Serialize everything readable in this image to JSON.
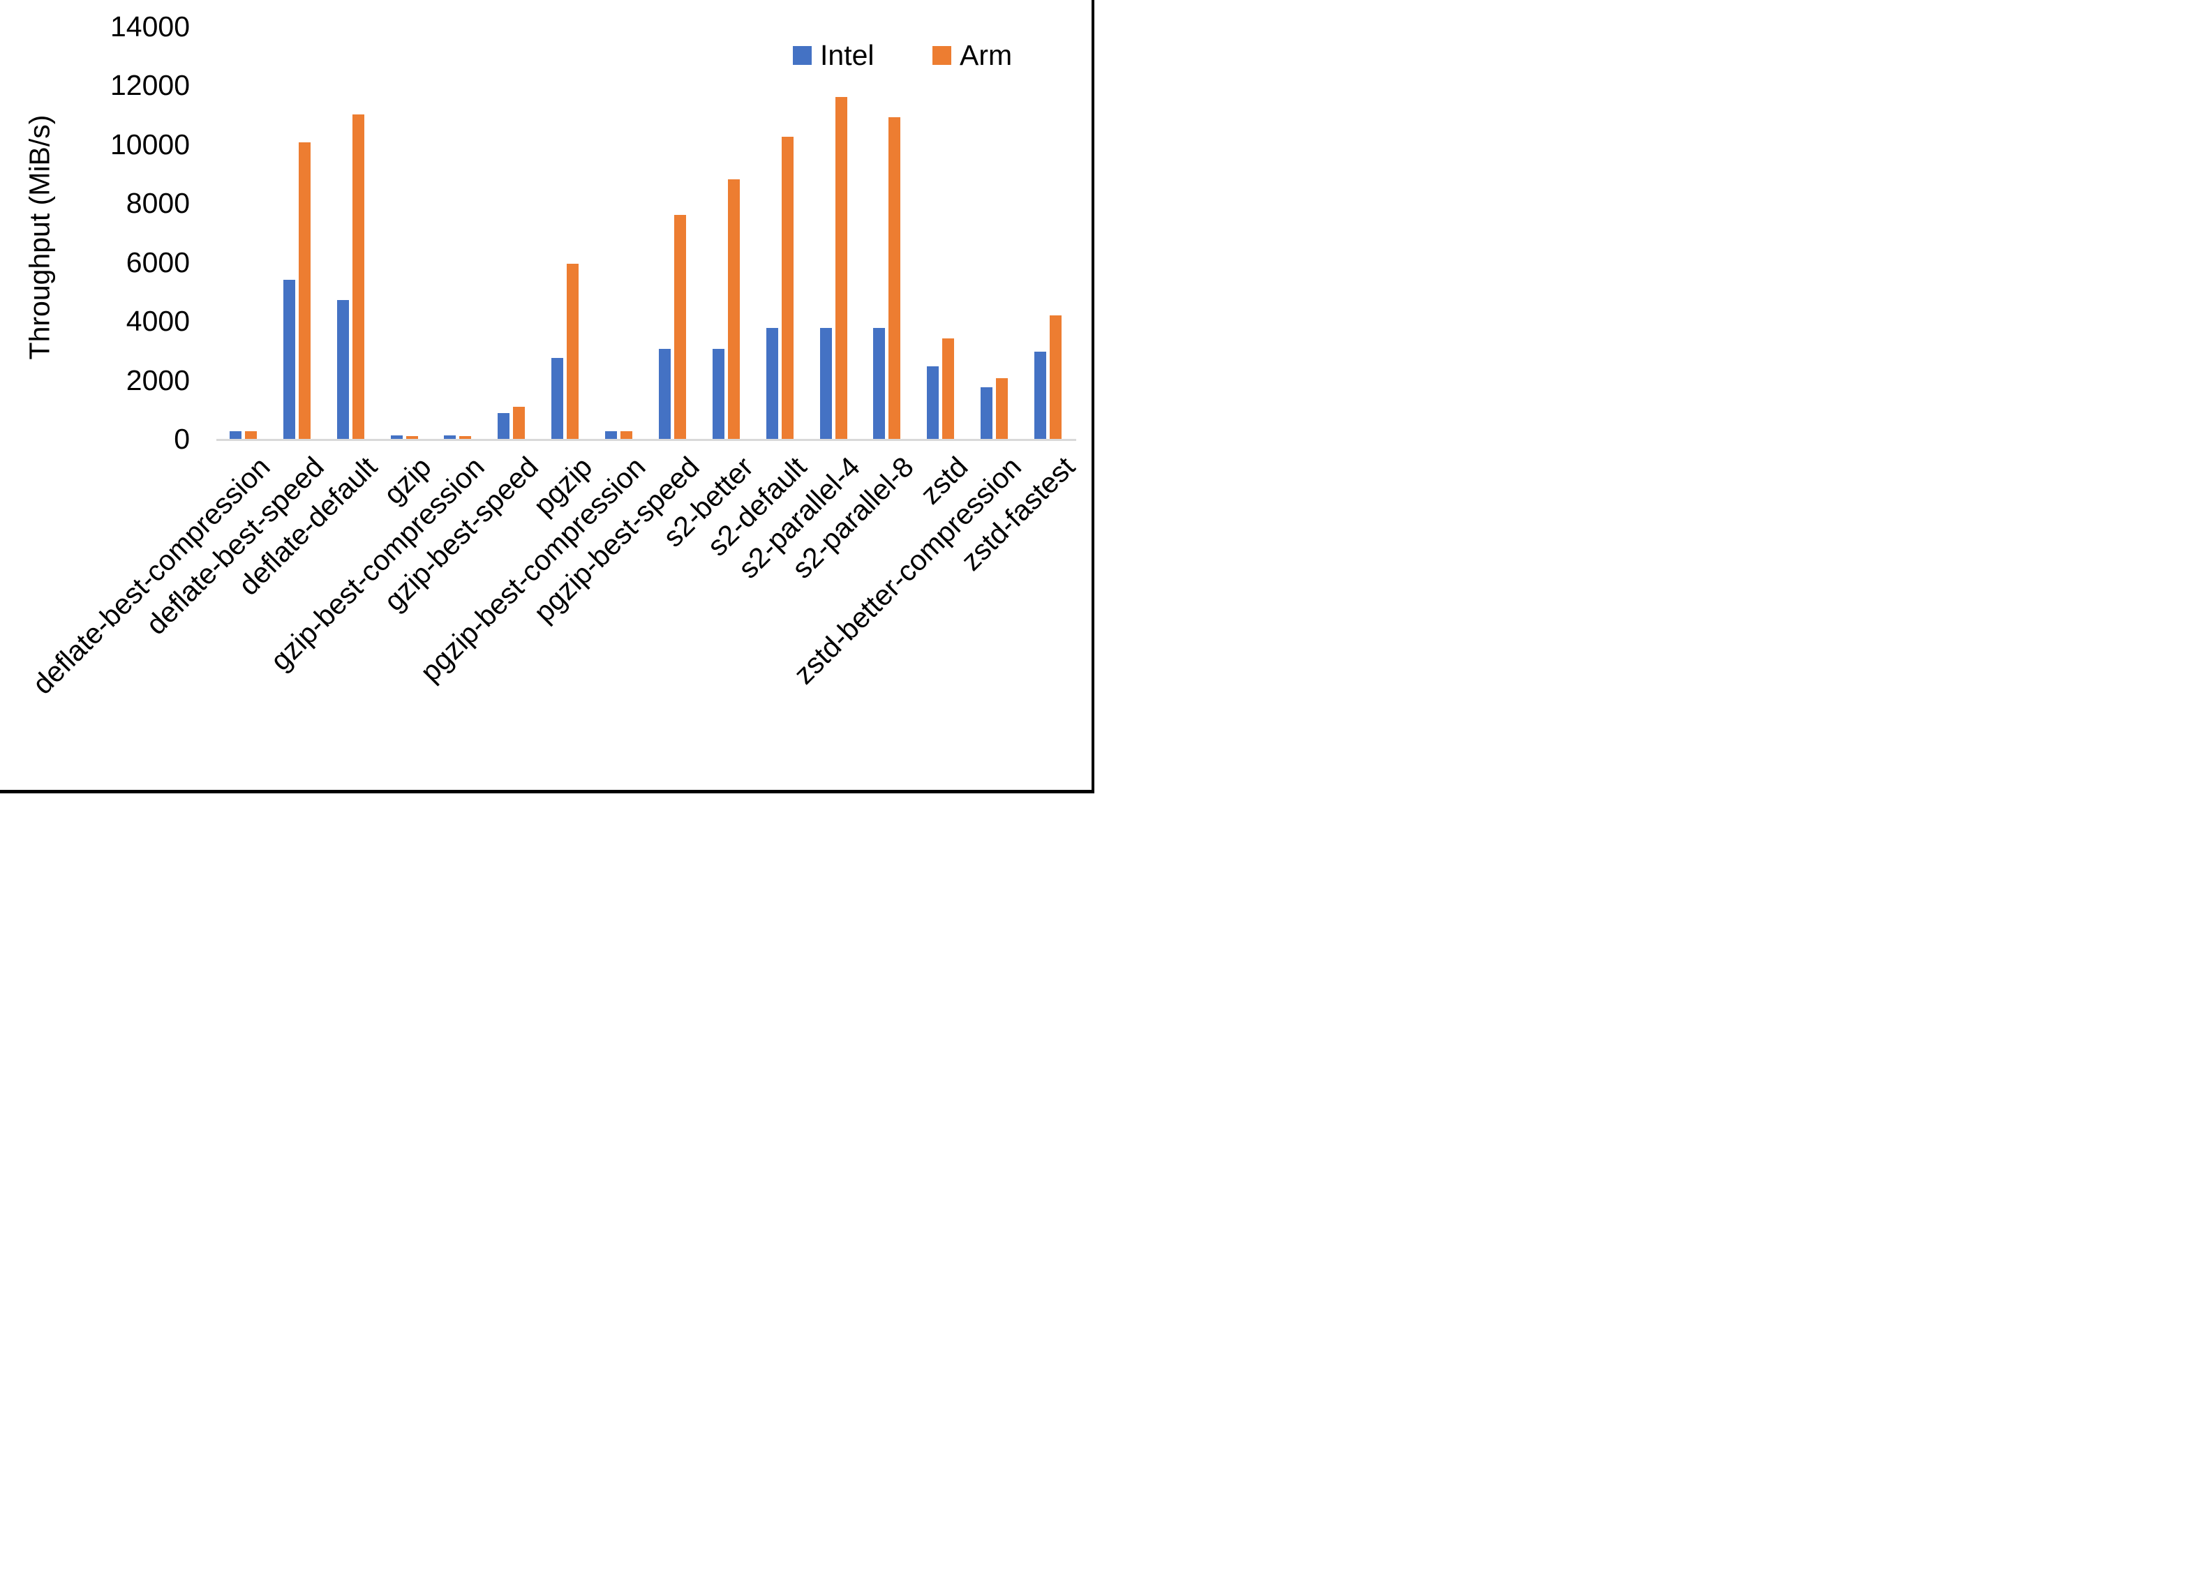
{
  "chart_data": {
    "type": "bar",
    "title": "",
    "xlabel": "",
    "ylabel": "Throughput (MiB/s)",
    "ylim": [
      0,
      14000
    ],
    "yticks": [
      0,
      2000,
      4000,
      6000,
      8000,
      10000,
      12000,
      14000
    ],
    "grid": false,
    "legend_position": "top-right",
    "axis_line_color": "#d9d9d9",
    "text_color": "#000000",
    "categories": [
      "deflate-best-compression",
      "deflate-best-speed",
      "deflate-default",
      "gzip",
      "gzip-best-compression",
      "gzip-best-speed",
      "pgzip",
      "pgzip-best-compression",
      "pgzip-best-speed",
      "s2-better",
      "s2-default",
      "s2-parallel-4",
      "s2-parallel-8",
      "zstd",
      "zstd-better-compression",
      "zstd-fastest"
    ],
    "series": [
      {
        "name": "Intel",
        "color": "#4472C4",
        "values": [
          260,
          5400,
          4700,
          115,
          115,
          880,
          2750,
          250,
          3050,
          3050,
          3760,
          3760,
          3760,
          2450,
          1750,
          2950
        ]
      },
      {
        "name": "Arm",
        "color": "#ED7D31",
        "values": [
          260,
          10050,
          11000,
          95,
          100,
          1100,
          5950,
          250,
          7600,
          8800,
          10250,
          11600,
          10900,
          3400,
          2050,
          4200
        ]
      }
    ]
  }
}
